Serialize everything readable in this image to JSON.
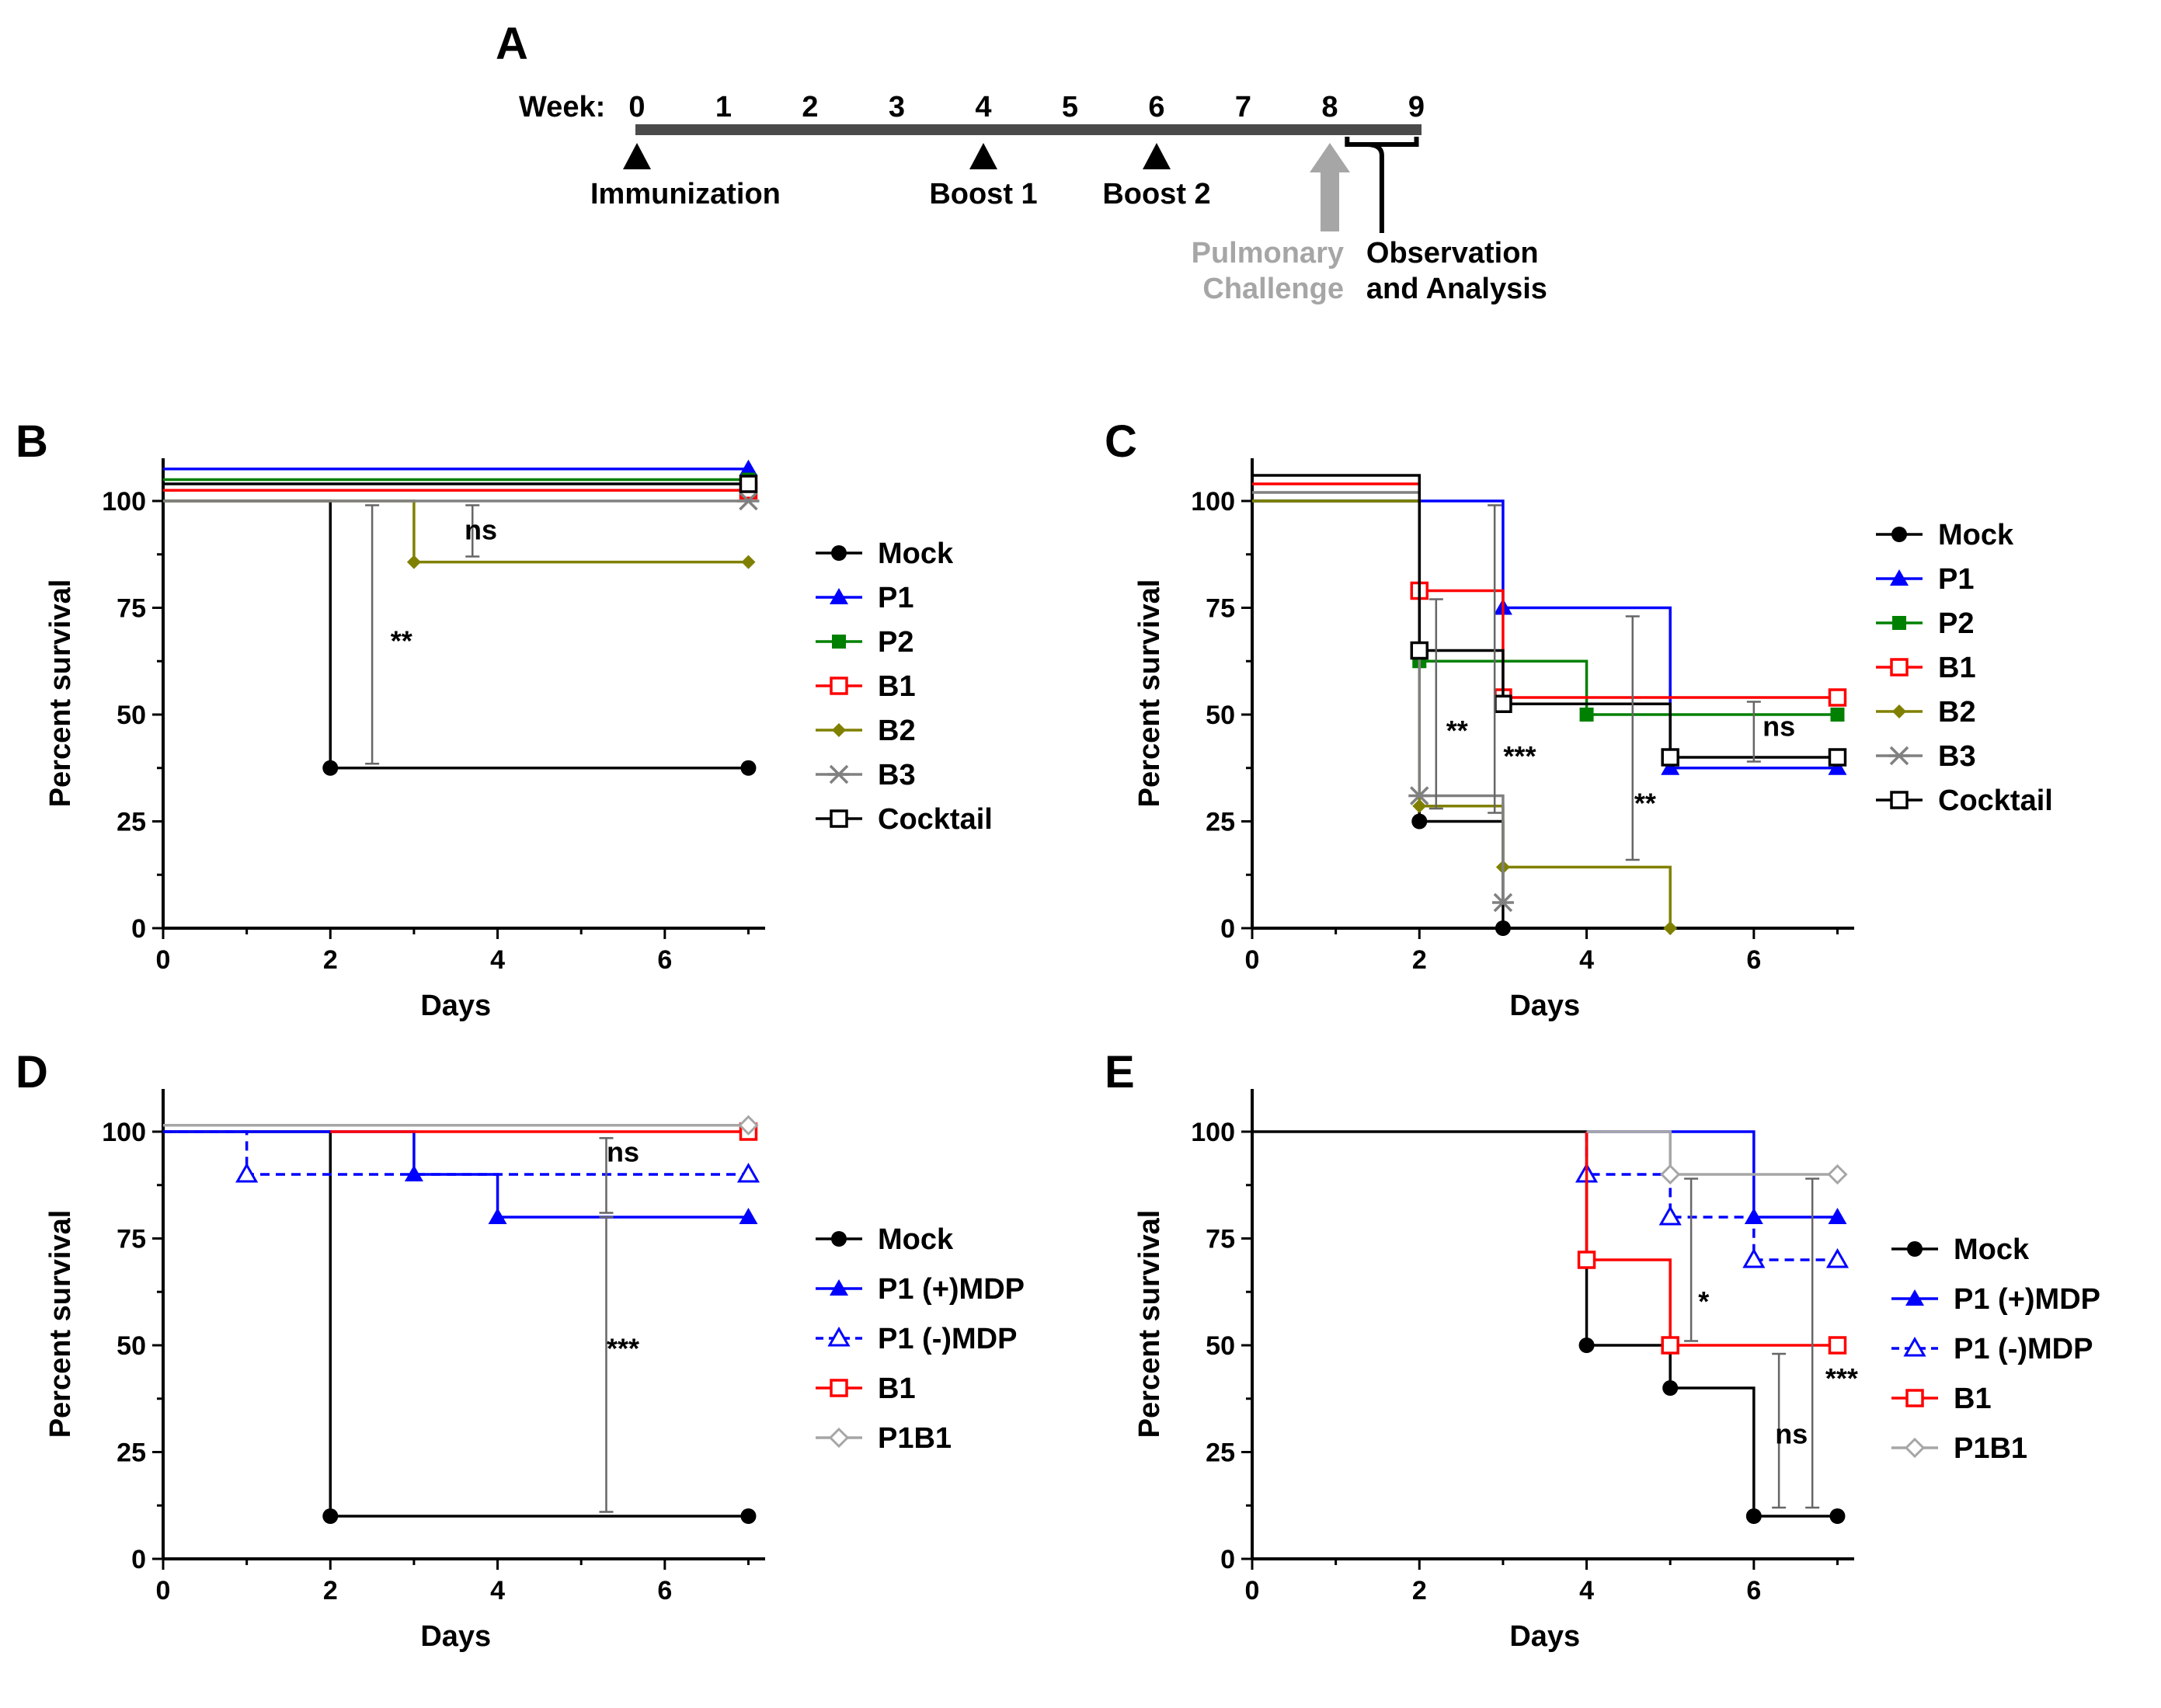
{
  "timeline": {
    "panel_label": "A",
    "week_label": "Week:",
    "weeks": [
      "0",
      "1",
      "2",
      "3",
      "4",
      "5",
      "6",
      "7",
      "8",
      "9"
    ],
    "events": [
      {
        "week": 0,
        "label": "Immunization",
        "marker": "triangle"
      },
      {
        "week": 4,
        "label": "Boost 1",
        "marker": "triangle"
      },
      {
        "week": 6,
        "label": "Boost 2",
        "marker": "triangle"
      }
    ],
    "challenge": {
      "week": 8,
      "lines": [
        "Pulmonary",
        "Challenge"
      ],
      "color": "#a6a6a6"
    },
    "observation": {
      "week_start": 8.2,
      "week_end": 9,
      "lines": [
        "Observation",
        "and Analysis"
      ]
    }
  },
  "chart_data": [
    {
      "panel": "B",
      "type": "line",
      "subtype": "kaplan-meier",
      "xlabel": "Days",
      "ylabel": "Percent survival",
      "xlim": [
        0,
        7.2
      ],
      "ylim": [
        0,
        110
      ],
      "xticks": [
        0,
        2,
        4,
        6
      ],
      "yticks": [
        0,
        25,
        50,
        75,
        100
      ],
      "series": [
        {
          "name": "Mock",
          "color": "#000000",
          "marker": "circle-filled",
          "dashed": false,
          "offset": 0,
          "steps": [
            [
              0,
              100
            ],
            [
              2,
              37.5
            ],
            [
              7,
              37.5
            ]
          ],
          "markers": [
            [
              2,
              37.5
            ],
            [
              7,
              37.5
            ]
          ]
        },
        {
          "name": "P1",
          "color": "#0000ff",
          "marker": "triangle-filled",
          "dashed": false,
          "offset": 7.5,
          "steps": [
            [
              0,
              100
            ],
            [
              7,
              100
            ]
          ],
          "markers": [
            [
              7,
              100
            ]
          ]
        },
        {
          "name": "P2",
          "color": "#008000",
          "marker": "square-filled",
          "dashed": false,
          "offset": 5,
          "steps": [
            [
              0,
              100
            ],
            [
              7,
              100
            ]
          ],
          "markers": [
            [
              7,
              100
            ]
          ]
        },
        {
          "name": "B1",
          "color": "#ff0000",
          "marker": "square-open",
          "dashed": false,
          "offset": 2.5,
          "steps": [
            [
              0,
              100
            ],
            [
              7,
              100
            ]
          ],
          "markers": [
            [
              7,
              100
            ]
          ]
        },
        {
          "name": "B2",
          "color": "#808000",
          "marker": "diamond-filled",
          "dashed": false,
          "offset": 0,
          "steps": [
            [
              0,
              100
            ],
            [
              3,
              85.7
            ],
            [
              7,
              85.7
            ]
          ],
          "markers": [
            [
              3,
              85.7
            ],
            [
              7,
              85.7
            ]
          ]
        },
        {
          "name": "B3",
          "color": "#808080",
          "marker": "star",
          "dashed": false,
          "offset": 0,
          "steps": [
            [
              0,
              100
            ],
            [
              7,
              100
            ]
          ],
          "markers": [
            [
              7,
              100
            ]
          ]
        },
        {
          "name": "Cocktail",
          "color": "#000000",
          "marker": "square-open",
          "dashed": false,
          "offset": 4,
          "steps": [
            [
              0,
              100
            ],
            [
              7,
              100
            ]
          ],
          "markers": [
            [
              7,
              100
            ]
          ]
        }
      ],
      "annotations": [
        {
          "text": "ns",
          "x": 3.8,
          "y": 91,
          "bar": {
            "x": 3.7,
            "y1": 87,
            "y2": 99
          }
        },
        {
          "text": "**",
          "x": 2.85,
          "y": 65,
          "bar": {
            "x": 2.5,
            "y1": 38.5,
            "y2": 99
          }
        }
      ]
    },
    {
      "panel": "C",
      "type": "line",
      "subtype": "kaplan-meier",
      "xlabel": "Days",
      "ylabel": "Percent survival",
      "xlim": [
        0,
        7.2
      ],
      "ylim": [
        0,
        110
      ],
      "xticks": [
        0,
        2,
        4,
        6
      ],
      "yticks": [
        0,
        25,
        50,
        75,
        100
      ],
      "series": [
        {
          "name": "Mock",
          "color": "#000000",
          "marker": "circle-filled",
          "dashed": false,
          "offset": 0,
          "steps": [
            [
              0,
              100
            ],
            [
              2,
              25
            ],
            [
              3,
              0
            ]
          ],
          "markers": [
            [
              2,
              25
            ],
            [
              3,
              0
            ]
          ]
        },
        {
          "name": "P1",
          "color": "#0000ff",
          "marker": "triangle-filled",
          "dashed": false,
          "offset": 0,
          "steps": [
            [
              0,
              100
            ],
            [
              3,
              75
            ],
            [
              5,
              37.5
            ],
            [
              7,
              37.5
            ]
          ],
          "markers": [
            [
              3,
              75
            ],
            [
              5,
              37.5
            ],
            [
              7,
              37.5
            ]
          ]
        },
        {
          "name": "P2",
          "color": "#008000",
          "marker": "square-filled",
          "dashed": false,
          "offset": 0,
          "steps": [
            [
              0,
              100
            ],
            [
              2,
              62.5
            ],
            [
              4,
              50
            ],
            [
              7,
              50
            ]
          ],
          "markers": [
            [
              2,
              62.5
            ],
            [
              4,
              50
            ],
            [
              7,
              50
            ]
          ]
        },
        {
          "name": "B1",
          "color": "#ff0000",
          "marker": "square-open",
          "dashed": false,
          "offset": 0,
          "steps": [
            [
              0,
              104
            ],
            [
              2,
              79
            ],
            [
              3,
              54
            ],
            [
              7,
              54
            ]
          ],
          "markers": [
            [
              2,
              79
            ],
            [
              3,
              54
            ],
            [
              7,
              54
            ]
          ]
        },
        {
          "name": "B2",
          "color": "#808000",
          "marker": "diamond-filled",
          "dashed": false,
          "offset": 0,
          "steps": [
            [
              0,
              100
            ],
            [
              2,
              28.6
            ],
            [
              3,
              14.3
            ],
            [
              5,
              0
            ]
          ],
          "markers": [
            [
              2,
              28.6
            ],
            [
              3,
              14.3
            ],
            [
              5,
              0
            ]
          ]
        },
        {
          "name": "B3",
          "color": "#808080",
          "marker": "star",
          "dashed": false,
          "offset": 0,
          "steps": [
            [
              0,
              102
            ],
            [
              2,
              31
            ],
            [
              3,
              6
            ]
          ],
          "markers": [
            [
              2,
              31
            ],
            [
              3,
              6
            ]
          ]
        },
        {
          "name": "Cocktail",
          "color": "#000000",
          "marker": "square-open",
          "dashed": false,
          "offset": 0,
          "steps": [
            [
              0,
              106
            ],
            [
              2,
              65
            ],
            [
              3,
              52.5
            ],
            [
              5,
              40
            ],
            [
              7,
              40
            ]
          ],
          "markers": [
            [
              2,
              65
            ],
            [
              3,
              52.5
            ],
            [
              5,
              40
            ],
            [
              7,
              40
            ]
          ]
        }
      ],
      "annotations": [
        {
          "text": "**",
          "x": 2.45,
          "y": 44,
          "bar": {
            "x": 2.2,
            "y1": 28,
            "y2": 77
          }
        },
        {
          "text": "***",
          "x": 3.2,
          "y": 38,
          "bar": {
            "x": 2.9,
            "y1": 27,
            "y2": 99
          }
        },
        {
          "text": "**",
          "x": 4.7,
          "y": 27,
          "bar": {
            "x": 4.55,
            "y1": 16,
            "y2": 73
          }
        },
        {
          "text": "ns",
          "x": 6.3,
          "y": 45,
          "bar": {
            "x": 6.0,
            "y1": 39,
            "y2": 53
          }
        }
      ]
    },
    {
      "panel": "D",
      "type": "line",
      "subtype": "kaplan-meier",
      "xlabel": "Days",
      "ylabel": "Percent survival",
      "xlim": [
        0,
        7.2
      ],
      "ylim": [
        0,
        110
      ],
      "xticks": [
        0,
        2,
        4,
        6
      ],
      "yticks": [
        0,
        25,
        50,
        75,
        100
      ],
      "series": [
        {
          "name": "Mock",
          "color": "#000000",
          "marker": "circle-filled",
          "dashed": false,
          "offset": 0,
          "steps": [
            [
              0,
              100
            ],
            [
              2,
              10
            ],
            [
              7,
              10
            ]
          ],
          "markers": [
            [
              2,
              10
            ],
            [
              7,
              10
            ]
          ]
        },
        {
          "name": "P1 (+)MDP",
          "color": "#0000ff",
          "marker": "triangle-filled",
          "dashed": false,
          "offset": 0,
          "steps": [
            [
              0,
              100
            ],
            [
              3,
              90
            ],
            [
              4,
              80
            ],
            [
              7,
              80
            ]
          ],
          "markers": [
            [
              3,
              90
            ],
            [
              4,
              80
            ],
            [
              7,
              80
            ]
          ]
        },
        {
          "name": "P1 (-)MDP",
          "color": "#0000ff",
          "marker": "triangle-open",
          "dashed": true,
          "offset": 0,
          "steps": [
            [
              0,
              100
            ],
            [
              1,
              90
            ],
            [
              7,
              90
            ]
          ],
          "markers": [
            [
              1,
              90
            ],
            [
              7,
              90
            ]
          ]
        },
        {
          "name": "B1",
          "color": "#ff0000",
          "marker": "square-open",
          "dashed": false,
          "offset": 0,
          "steps": [
            [
              2,
              100
            ],
            [
              7,
              100
            ]
          ],
          "markers": [
            [
              7,
              100
            ]
          ]
        },
        {
          "name": "P1B1",
          "color": "#a6a6a6",
          "marker": "diamond-open",
          "dashed": false,
          "offset": 1.5,
          "steps": [
            [
              0,
              100
            ],
            [
              7,
              100
            ]
          ],
          "markers": [
            [
              7,
              100
            ]
          ]
        }
      ],
      "annotations": [
        {
          "text": "ns",
          "x": 5.5,
          "y": 93,
          "bar": {
            "x": 5.3,
            "y1": 81,
            "y2": 98.5
          }
        },
        {
          "text": "***",
          "x": 5.5,
          "y": 47,
          "bar": {
            "x": 5.3,
            "y1": 11,
            "y2": 80
          }
        }
      ]
    },
    {
      "panel": "E",
      "type": "line",
      "subtype": "kaplan-meier",
      "xlabel": "Days",
      "ylabel": "Percent survival",
      "xlim": [
        0,
        7.2
      ],
      "ylim": [
        0,
        110
      ],
      "xticks": [
        0,
        2,
        4,
        6
      ],
      "yticks": [
        0,
        25,
        50,
        75,
        100
      ],
      "series": [
        {
          "name": "Mock",
          "color": "#000000",
          "marker": "circle-filled",
          "dashed": false,
          "offset": 0,
          "steps": [
            [
              0,
              100
            ],
            [
              4,
              50
            ],
            [
              5,
              40
            ],
            [
              6,
              10
            ],
            [
              7,
              10
            ]
          ],
          "markers": [
            [
              4,
              50
            ],
            [
              5,
              40
            ],
            [
              6,
              10
            ],
            [
              7,
              10
            ]
          ]
        },
        {
          "name": "P1 (+)MDP",
          "color": "#0000ff",
          "marker": "triangle-filled",
          "dashed": false,
          "offset": 0,
          "steps": [
            [
              4,
              100
            ],
            [
              6,
              80
            ],
            [
              7,
              80
            ]
          ],
          "markers": [
            [
              6,
              80
            ],
            [
              7,
              80
            ]
          ]
        },
        {
          "name": "P1 (-)MDP",
          "color": "#0000ff",
          "marker": "triangle-open",
          "dashed": true,
          "offset": 0,
          "steps": [
            [
              4,
              100
            ],
            [
              4,
              90
            ],
            [
              5,
              80
            ],
            [
              6,
              70
            ],
            [
              7,
              70
            ]
          ],
          "markers": [
            [
              4,
              90
            ],
            [
              5,
              80
            ],
            [
              6,
              70
            ],
            [
              7,
              70
            ]
          ]
        },
        {
          "name": "B1",
          "color": "#ff0000",
          "marker": "square-open",
          "dashed": false,
          "offset": 0,
          "steps": [
            [
              4,
              100
            ],
            [
              4,
              70
            ],
            [
              5,
              50
            ],
            [
              7,
              50
            ]
          ],
          "markers": [
            [
              4,
              70
            ],
            [
              5,
              50
            ],
            [
              7,
              50
            ]
          ]
        },
        {
          "name": "P1B1",
          "color": "#a6a6a6",
          "marker": "diamond-open",
          "dashed": false,
          "offset": 0,
          "steps": [
            [
              4,
              100
            ],
            [
              5,
              90
            ],
            [
              7,
              90
            ]
          ],
          "markers": [
            [
              5,
              90
            ],
            [
              7,
              90
            ]
          ]
        }
      ],
      "annotations": [
        {
          "text": "*",
          "x": 5.4,
          "y": 58,
          "bar": {
            "x": 5.25,
            "y1": 51,
            "y2": 89
          }
        },
        {
          "text": "ns",
          "x": 6.45,
          "y": 27,
          "bar": {
            "x": 6.3,
            "y1": 12,
            "y2": 48
          }
        },
        {
          "text": "***",
          "x": 7.05,
          "y": 40,
          "bar": {
            "x": 6.7,
            "y1": 12,
            "y2": 89
          }
        }
      ]
    }
  ]
}
